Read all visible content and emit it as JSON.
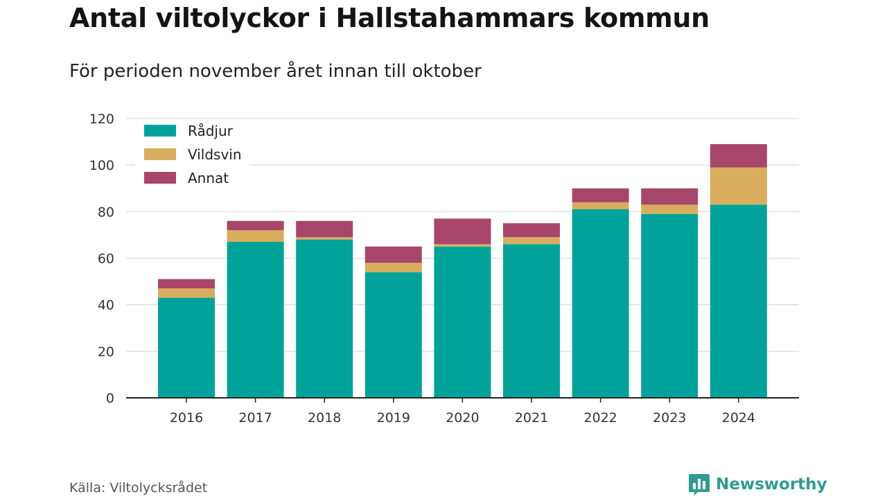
{
  "title": "Antal viltolyckor i Hallstahammars kommun",
  "subtitle": "För perioden november året innan till oktober",
  "source": "Källa: Viltolycksrådet",
  "brand": {
    "name": "Newsworthy",
    "icon": "bar-chart-logo-icon",
    "color": "#2e9c8f"
  },
  "chart_data": {
    "type": "bar",
    "stacked": true,
    "categories": [
      "2016",
      "2017",
      "2018",
      "2019",
      "2020",
      "2021",
      "2022",
      "2023",
      "2024"
    ],
    "series": [
      {
        "name": "Rådjur",
        "color": "#00a39a",
        "values": [
          43,
          67,
          68,
          54,
          65,
          66,
          81,
          79,
          83
        ]
      },
      {
        "name": "Vildsvin",
        "color": "#d8ad5b",
        "values": [
          4,
          5,
          1,
          4,
          1,
          3,
          3,
          4,
          16
        ]
      },
      {
        "name": "Annat",
        "color": "#a8456b",
        "values": [
          4,
          4,
          7,
          7,
          11,
          6,
          6,
          7,
          10
        ]
      }
    ],
    "ylim": [
      0,
      120
    ],
    "yticks": [
      0,
      20,
      40,
      60,
      80,
      100,
      120
    ],
    "xlabel": "",
    "ylabel": "",
    "grid": true,
    "legend": "top-left"
  }
}
